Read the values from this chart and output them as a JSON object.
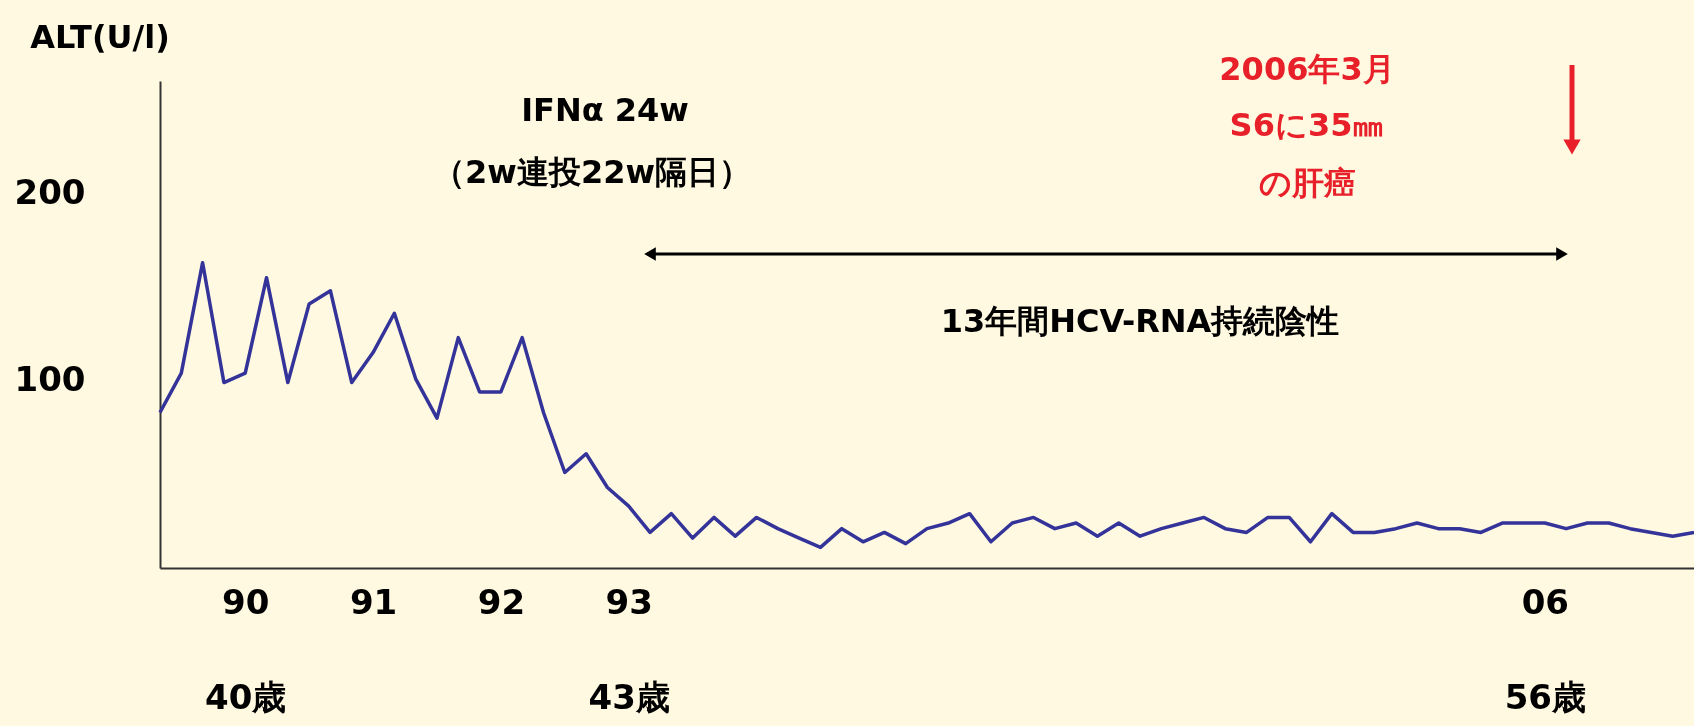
{
  "chart_data": {
    "type": "line",
    "ylabel": "ALT(U/l)",
    "categories": [
      null,
      null,
      null,
      null,
      "90\n40歳",
      null,
      null,
      null,
      null,
      null,
      "91",
      null,
      null,
      null,
      null,
      null,
      "92",
      null,
      null,
      null,
      null,
      null,
      "93\n43歳",
      null,
      null,
      null,
      null,
      null,
      null,
      null,
      null,
      null,
      null,
      null,
      null,
      null,
      null,
      null,
      null,
      null,
      null,
      null,
      null,
      null,
      null,
      null,
      null,
      null,
      null,
      null,
      null,
      null,
      null,
      null,
      null,
      null,
      null,
      null,
      null,
      null,
      null,
      null,
      null,
      null,
      null,
      "06\n56歳",
      null,
      null,
      null,
      null,
      null,
      null,
      null
    ],
    "series": [
      {
        "color": "#333399",
        "values": [
          83,
          104,
          163,
          99,
          104,
          155,
          99,
          141,
          148,
          99,
          115,
          136,
          101,
          80,
          123,
          94,
          94,
          123,
          83,
          51,
          61,
          43,
          33,
          19,
          29,
          16,
          27,
          17,
          27,
          21,
          16,
          11,
          21,
          14,
          19,
          13,
          21,
          24,
          29,
          14,
          24,
          27,
          21,
          24,
          17,
          24,
          17,
          21,
          24,
          27,
          21,
          19,
          27,
          27,
          14,
          29,
          19,
          19,
          21,
          24,
          21,
          21,
          19,
          24,
          24,
          24,
          21,
          24,
          24,
          21,
          19,
          17,
          19
        ]
      }
    ],
    "ylim": [
      0,
      260
    ],
    "yticks": [
      100,
      200
    ],
    "annotations": [
      "IFNα 24w",
      "（2w連投22w隔日）",
      "13年間HCV-RNA持続陰性",
      "2006年3月",
      "S6に35㎜",
      "の肝癌"
    ],
    "grid": false,
    "marker": "none",
    "line_style": "solid"
  }
}
